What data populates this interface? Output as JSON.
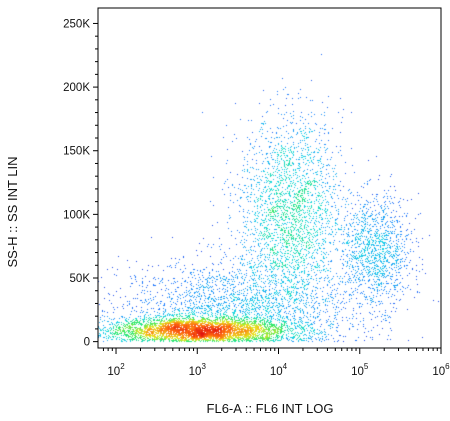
{
  "chart_data": {
    "type": "scatter",
    "subtype": "flow-cytometry density dot plot",
    "xlabel": "FL6-A :: FL6 INT LOG",
    "ylabel": "SS-H :: SS INT LIN",
    "x_scale": "log",
    "xlim": [
      60,
      1000000
    ],
    "ylim": [
      -5000,
      262144
    ],
    "x_ticks": [
      {
        "base": "10",
        "exp": "2",
        "value": 100
      },
      {
        "base": "10",
        "exp": "3",
        "value": 1000
      },
      {
        "base": "10",
        "exp": "4",
        "value": 10000
      },
      {
        "base": "10",
        "exp": "5",
        "value": 100000
      },
      {
        "base": "10",
        "exp": "6",
        "value": 1000000
      }
    ],
    "y_ticks": [
      {
        "label": "0",
        "value": 0
      },
      {
        "label": "50K",
        "value": 50000
      },
      {
        "label": "100K",
        "value": 100000
      },
      {
        "label": "150K",
        "value": 150000
      },
      {
        "label": "200K",
        "value": 200000
      },
      {
        "label": "250K",
        "value": 250000
      }
    ],
    "grid": false,
    "colormap": [
      "#1a1ad6",
      "#1f7fff",
      "#19d4e6",
      "#2ee86a",
      "#e8e820",
      "#ff6a10",
      "#e01010"
    ],
    "populations": [
      {
        "x_center": 1000,
        "x_spread_decades": 0.55,
        "y_center": 9000,
        "y_spread": 5000,
        "count": 9000,
        "density": "very high"
      },
      {
        "x_center": 14000,
        "x_spread_decades": 0.32,
        "y_center": 100000,
        "y_spread": 38000,
        "count": 6500,
        "density": "high"
      },
      {
        "x_center": 160000,
        "x_spread_decades": 0.22,
        "y_center": 70000,
        "y_spread": 22000,
        "count": 1300,
        "density": "medium"
      },
      {
        "x_center": 3000,
        "x_spread_decades": 0.7,
        "y_center": 25000,
        "y_spread": 20000,
        "count": 2500,
        "density": "low"
      }
    ]
  }
}
